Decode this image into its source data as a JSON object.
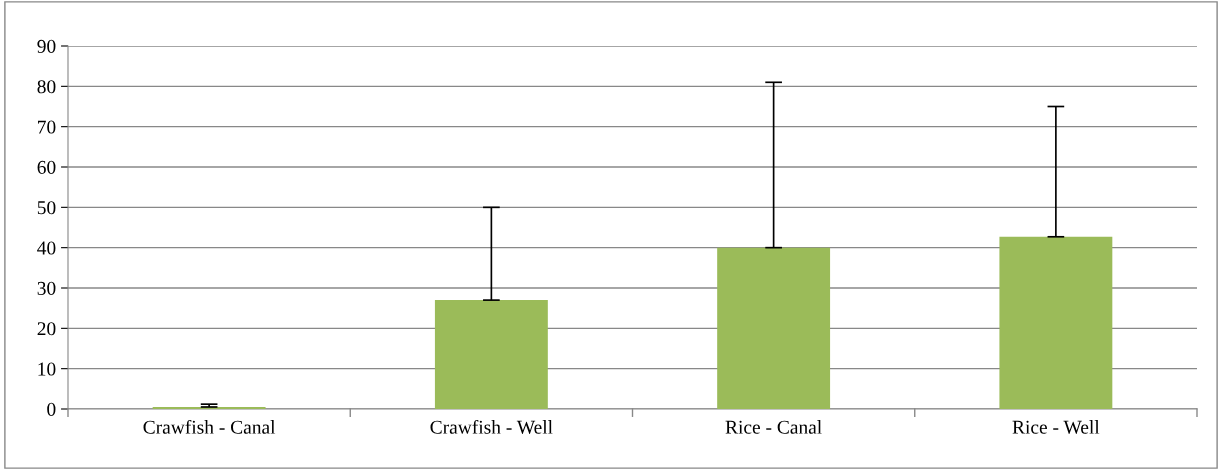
{
  "chart_data": {
    "type": "bar",
    "categories": [
      "Crawfish - Canal",
      "Crawfish - Well",
      "Rice - Canal",
      "Rice - Well"
    ],
    "values": [
      0.5,
      27,
      40,
      42.7
    ],
    "errors": [
      [
        0.5,
        1.2
      ],
      [
        27,
        50
      ],
      [
        40,
        81
      ],
      [
        42.7,
        75
      ]
    ],
    "color": "#9bbb59",
    "ylim": [
      0,
      90
    ],
    "yticks": [
      0,
      10,
      20,
      30,
      40,
      50,
      60,
      70,
      80,
      90
    ],
    "grid": "y"
  }
}
